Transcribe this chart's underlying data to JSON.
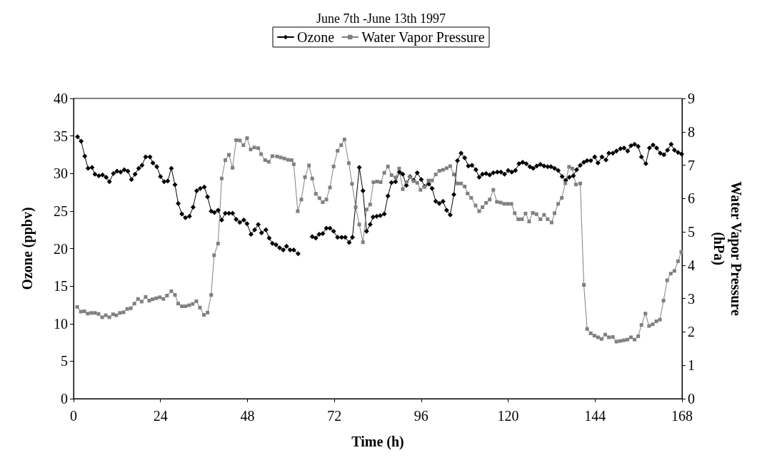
{
  "chart_data": {
    "type": "line",
    "title": "June 7th -June 13th 1997",
    "xlabel": "Time (h)",
    "ylabel": "Ozone (ppbv)",
    "y2label": "Water Vapor Pressure\n(hPa)",
    "xlim": [
      0,
      168
    ],
    "xticks": [
      0,
      24,
      48,
      72,
      96,
      120,
      144,
      168
    ],
    "ylim": [
      0,
      40
    ],
    "yticks": [
      0,
      5,
      10,
      15,
      20,
      25,
      30,
      35,
      40
    ],
    "y2lim": [
      0,
      9
    ],
    "y2ticks": [
      0,
      1,
      2,
      3,
      4,
      5,
      6,
      7,
      8,
      9
    ],
    "grid": false,
    "legend": "top",
    "line_style": "solid",
    "series": [
      {
        "name": "Ozone",
        "color": "#000000",
        "marker": "diamond",
        "x": [
          1.1,
          2.1,
          3.1,
          4,
          5.1,
          5.9,
          7,
          8,
          9,
          9.9,
          11,
          12,
          13,
          14,
          15,
          16,
          17,
          18,
          18.9,
          19.9,
          21.1,
          21.9,
          23,
          24,
          25,
          26,
          27,
          28,
          28.9,
          29.9,
          30.9,
          32,
          33,
          34,
          35,
          36.1,
          37,
          38,
          38.9,
          39.9,
          40.9,
          41.9,
          42.9,
          43.9,
          44.9,
          45.9,
          47,
          47.9,
          49,
          50,
          51,
          51.9,
          53.1,
          54,
          54.9,
          55.9,
          56.9,
          57.9,
          58.8,
          59.8,
          60.8,
          62,
          64,
          65.9,
          66.9,
          67.8,
          68.8,
          69.8,
          70.8,
          71.8,
          72.9,
          74,
          75,
          76.1,
          77,
          78.9,
          79.9,
          80.9,
          81.9,
          82.7,
          83.7,
          84.7,
          85.8,
          86.8,
          87.8,
          88.9,
          90,
          90.9,
          91.9,
          92.9,
          93.9,
          94.9,
          96,
          96.9,
          98.1,
          99,
          100,
          101,
          102,
          103,
          104,
          105,
          106,
          107,
          108,
          109,
          110,
          111.1,
          112,
          112.9,
          113.9,
          114.9,
          115.9,
          117,
          118,
          119,
          120,
          121,
          122,
          123,
          124,
          125,
          126,
          126.9,
          127.9,
          128.9,
          129.9,
          130.9,
          131.8,
          132.8,
          133.8,
          134.9,
          135.9,
          136.9,
          138,
          138.9,
          139.9,
          140.9,
          141.8,
          142.8,
          143.9,
          144.8,
          145.9,
          147,
          147.8,
          148.9,
          149.9,
          151,
          152,
          153,
          153.9,
          154.9,
          155.9,
          156.8,
          158,
          159,
          160,
          161,
          162,
          163,
          164,
          165,
          165.9,
          166.9,
          167.9
        ],
        "values": [
          34.9,
          34.3,
          32.3,
          30.7,
          30.8,
          29.9,
          29.7,
          29.8,
          29.5,
          28.9,
          30,
          30.3,
          30.2,
          30.5,
          30.3,
          29.2,
          29.9,
          30.7,
          31.1,
          32.2,
          32.2,
          31.4,
          30.9,
          29.6,
          28.9,
          29,
          30.7,
          28.5,
          26,
          24.6,
          24.1,
          24.3,
          25.5,
          27.7,
          28,
          28.2,
          26.9,
          25,
          24.8,
          25.1,
          23.8,
          24.7,
          24.7,
          24.7,
          23.9,
          23.5,
          23.8,
          23.3,
          21.9,
          22.5,
          23.2,
          22.1,
          22.5,
          21.4,
          20.7,
          20.5,
          20.1,
          19.8,
          20.3,
          19.8,
          19.8,
          19.3,
          null,
          21.6,
          21.4,
          21.9,
          22,
          22.7,
          22.7,
          22.3,
          21.5,
          21.5,
          21.5,
          20.8,
          21.5,
          30.8,
          27.7,
          22.3,
          23.2,
          24.2,
          24.3,
          24.4,
          24.6,
          27,
          28.8,
          28.9,
          30.2,
          29.9,
          28.4,
          29.6,
          29.1,
          30.1,
          29.2,
          28.3,
          28.6,
          28,
          26.3,
          26,
          26.3,
          25.1,
          24.5,
          27.2,
          31.7,
          32.7,
          32.1,
          31,
          31.1,
          30.5,
          29.5,
          29.9,
          30,
          29.8,
          30.1,
          30.2,
          30.2,
          29.9,
          30.4,
          30.2,
          30.4,
          31.3,
          31.5,
          31.3,
          30.9,
          30.7,
          31,
          31.2,
          31,
          30.9,
          30.9,
          30.7,
          30.4,
          29.6,
          29.1,
          29.5,
          29.7,
          30.5,
          31.1,
          31.5,
          31.7,
          31.7,
          32.2,
          31.4,
          32.2,
          31.8,
          32.7,
          32.7,
          33,
          33.3,
          33.4,
          33,
          33.7,
          33.9,
          33.6,
          32.2,
          31.3,
          33.4,
          33.8,
          33.4,
          32.7,
          32.5,
          33.1,
          33.9,
          33.1,
          32.8,
          32.6
        ]
      },
      {
        "name": "Water Vapor Pressure",
        "color": "#808080",
        "marker": "square",
        "axis": "y2",
        "x": [
          1,
          2,
          3,
          3.9,
          4.9,
          5.9,
          6.9,
          7.9,
          8.9,
          9.9,
          10.9,
          11.8,
          12.8,
          13.8,
          14.8,
          15.8,
          16.8,
          17.8,
          18.8,
          19.9,
          20.9,
          21.8,
          22.8,
          23.8,
          24.8,
          25.8,
          27,
          28,
          28.9,
          29.9,
          30.9,
          31.9,
          32.9,
          33.9,
          34.9,
          36,
          37,
          38,
          38.8,
          39.9,
          40.9,
          41.9,
          42.9,
          43.9,
          44.9,
          45.9,
          46.9,
          47.9,
          48.9,
          49.9,
          51,
          51.8,
          52.9,
          53.9,
          54.9,
          56.2,
          57.2,
          58.2,
          59.2,
          60.2,
          60.8,
          61.9,
          62.9,
          63.9,
          65,
          65.9,
          66.9,
          67.9,
          68.8,
          69.8,
          70.8,
          71.8,
          72.9,
          73.9,
          74.8,
          76,
          76.9,
          77.9,
          78.9,
          79.9,
          80.9,
          81.9,
          82.8,
          83.8,
          84.8,
          85.8,
          86.8,
          87.8,
          88.9,
          89.9,
          90.9,
          91.9,
          92.9,
          93.9,
          94.9,
          95.8,
          96.9,
          98,
          99,
          100,
          101,
          102,
          103,
          104,
          105,
          106,
          107,
          108,
          108.8,
          109.8,
          111,
          112,
          112.9,
          113.9,
          114.9,
          115.9,
          116.9,
          117.9,
          118.9,
          119.9,
          120.9,
          121.8,
          122.8,
          123.8,
          124.8,
          125.8,
          126.8,
          127.8,
          128.9,
          129.9,
          130.9,
          132,
          132.8,
          133.8,
          134.8,
          135.8,
          136.8,
          137.7,
          138.7,
          139.9,
          140.9,
          141.8,
          142.8,
          143.8,
          144.8,
          145.8,
          146.8,
          147.8,
          148.9,
          149.9,
          150.9,
          151.9,
          152.9,
          153.9,
          154.9,
          155.9,
          156.8,
          157.9,
          158.9,
          159.9,
          160.9,
          161.9,
          162.9,
          163.9,
          164.9,
          165.9,
          166.9,
          167.8
        ],
        "values": [
          2.75,
          2.61,
          2.62,
          2.55,
          2.57,
          2.57,
          2.54,
          2.44,
          2.5,
          2.44,
          2.53,
          2.5,
          2.57,
          2.59,
          2.69,
          2.71,
          2.85,
          2.99,
          2.91,
          3.05,
          2.94,
          2.98,
          3.01,
          3.04,
          2.99,
          3.09,
          3.22,
          3.11,
          2.85,
          2.77,
          2.77,
          2.8,
          2.84,
          2.92,
          2.73,
          2.51,
          2.58,
          3.11,
          4.3,
          4.65,
          6.6,
          7.15,
          7.31,
          6.92,
          7.75,
          7.74,
          7.6,
          7.81,
          7.47,
          7.53,
          7.51,
          7.33,
          7.15,
          7.1,
          7.27,
          7.26,
          7.23,
          7.2,
          7.16,
          7.15,
          7.03,
          5.62,
          5.97,
          6.64,
          6.99,
          6.6,
          6.14,
          6.01,
          5.89,
          5.97,
          6.33,
          6.96,
          7.43,
          7.6,
          7.77,
          7.06,
          6.44,
          5.74,
          5.22,
          4.69,
          5.67,
          5.82,
          6.49,
          6.51,
          6.49,
          6.77,
          6.96,
          6.7,
          6.63,
          6.9,
          6.28,
          6.49,
          6.65,
          6.52,
          6.47,
          6.26,
          6.35,
          6.54,
          6.54,
          6.72,
          6.83,
          6.86,
          6.91,
          6.97,
          6.72,
          6.45,
          6.45,
          6.36,
          6.15,
          6.02,
          5.79,
          5.62,
          5.74,
          5.87,
          5.97,
          6.26,
          5.9,
          5.88,
          5.84,
          5.84,
          5.84,
          5.56,
          5.38,
          5.38,
          5.55,
          5.31,
          5.57,
          5.53,
          5.38,
          5.51,
          5.38,
          5.28,
          5.56,
          5.84,
          6.02,
          6.46,
          6.95,
          6.9,
          6.42,
          6.45,
          3.41,
          2.09,
          1.96,
          1.89,
          1.84,
          1.79,
          1.92,
          1.84,
          1.85,
          1.71,
          1.73,
          1.75,
          1.77,
          1.84,
          1.77,
          1.87,
          2.21,
          2.55,
          2.18,
          2.23,
          2.32,
          2.37,
          2.94,
          3.55,
          3.75,
          3.83,
          4.12,
          4.4
        ]
      }
    ]
  }
}
